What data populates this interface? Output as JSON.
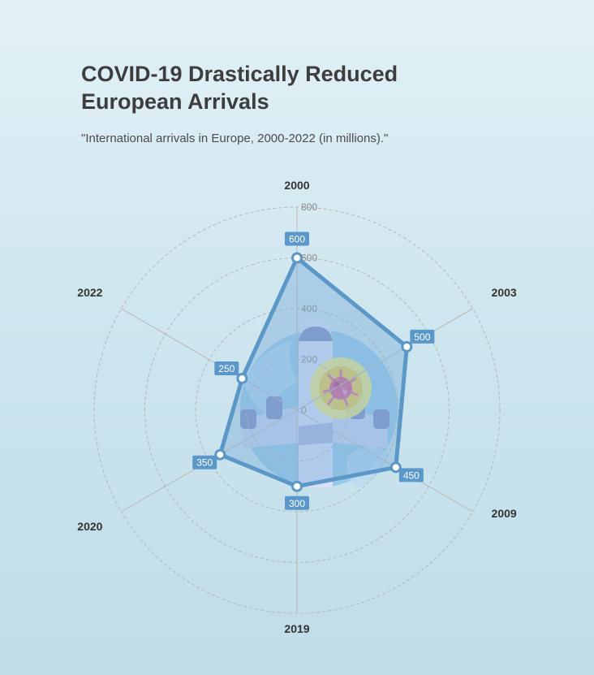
{
  "title": "COVID-19 Drastically Reduced European Arrivals",
  "subtitle": "\"International arrivals in Europe, 2000-2022 (in millions).\"",
  "chart_data": {
    "type": "radar",
    "categories": [
      "2000",
      "2003",
      "2009",
      "2019",
      "2020",
      "2022"
    ],
    "values": [
      600,
      500,
      450,
      300,
      350,
      250
    ],
    "value_labels": [
      "600",
      "500",
      "450",
      "300",
      "350",
      "250"
    ],
    "radial_ticks": [
      0,
      200,
      400,
      600,
      800
    ],
    "radial_tick_labels": [
      "0",
      "200",
      "400",
      "600",
      "800"
    ],
    "rlim": [
      0,
      800
    ],
    "grid": true,
    "colors": {
      "series_line": "#5b97c7",
      "series_fill": "#7fb0d9",
      "label_box": "#5a98cb",
      "grid": "#b6b6b6"
    }
  }
}
